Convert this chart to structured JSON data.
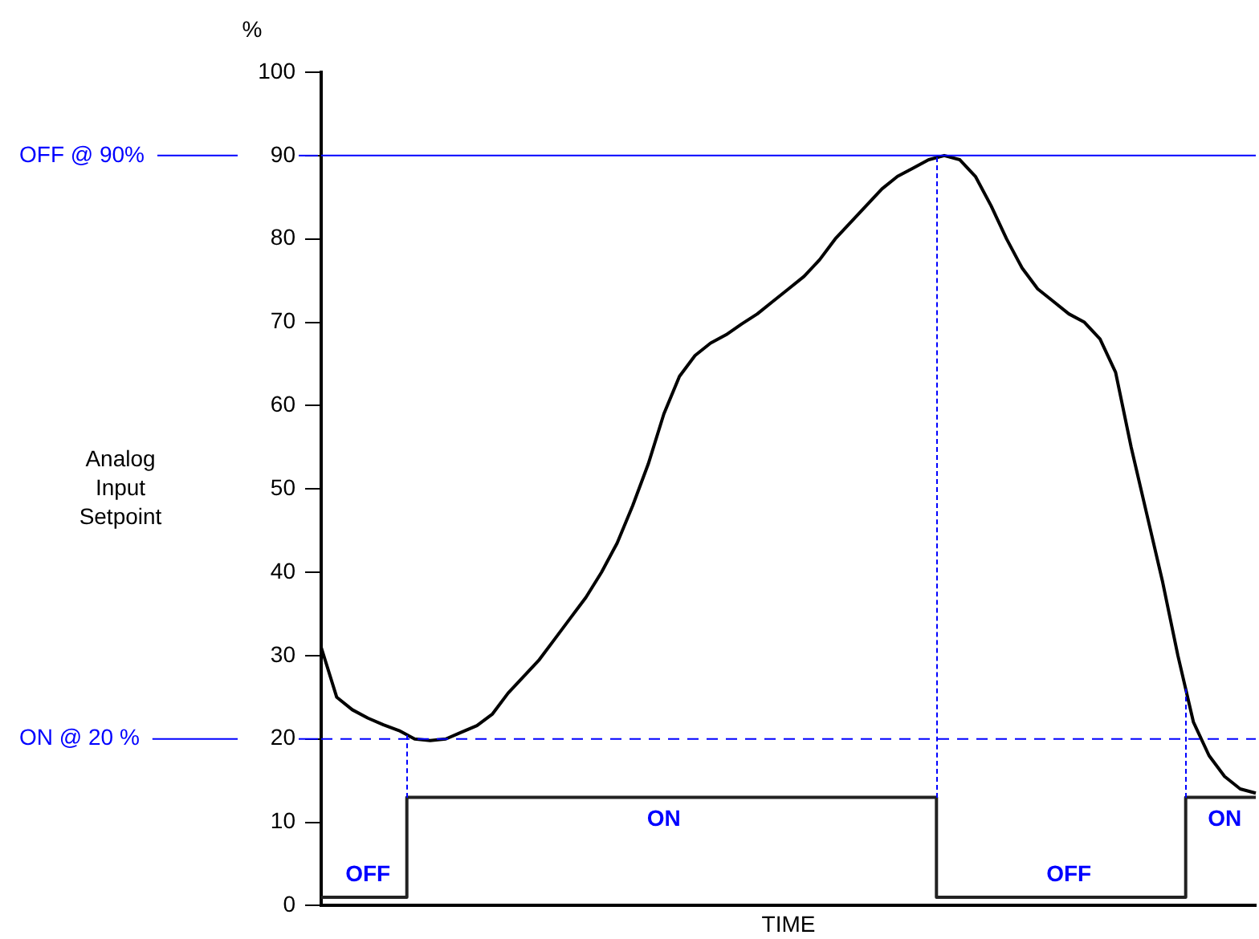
{
  "chart_data": {
    "type": "line",
    "ylabel": "Analog Input Setpoint",
    "xlabel": "TIME",
    "annotations": [
      "%"
    ],
    "categories": [
      null,
      null,
      null,
      null,
      null,
      null,
      null,
      null,
      null,
      null,
      null,
      null,
      null,
      null,
      null,
      null,
      null,
      null,
      null,
      null,
      null,
      null,
      null,
      null,
      null,
      null,
      null,
      null,
      null,
      null,
      null,
      null,
      null,
      null,
      null,
      null,
      null,
      null,
      null,
      null,
      null,
      null,
      null,
      null,
      null,
      null,
      null,
      null,
      null,
      null,
      null,
      null,
      null,
      null,
      null,
      null,
      null,
      null,
      null,
      null,
      null
    ],
    "ylim": [
      0,
      100
    ],
    "yticks": [
      0,
      10,
      20,
      30,
      40,
      50,
      60,
      70,
      80,
      90,
      100
    ],
    "grid": false,
    "legend": false,
    "tick_labels": "y",
    "marker": "none",
    "series": [
      {
        "color": "#000000",
        "values": [
          31,
          25,
          23.5,
          22.5,
          21.7,
          21,
          20,
          19.8,
          20,
          20.8,
          21.6,
          23,
          25.5,
          27.5,
          29.5,
          32,
          34.5,
          37,
          40,
          43.5,
          48,
          53,
          59,
          63.5,
          66,
          67.5,
          68.5,
          69.8,
          71,
          72.5,
          74,
          75.5,
          77.5,
          80,
          82,
          84,
          86,
          87.5,
          88.5,
          89.5,
          90,
          89.5,
          87.5,
          84,
          80,
          76.5,
          74,
          72.5,
          71,
          70,
          68,
          64,
          55,
          47,
          39,
          30,
          22,
          18,
          15.5,
          14,
          13.5
        ]
      },
      {
        "type": "step",
        "color": "#222222",
        "values": [
          1,
          1,
          1,
          1,
          1,
          1,
          13,
          13,
          13,
          13,
          13,
          13,
          13,
          13,
          13,
          13,
          13,
          13,
          13,
          13,
          13,
          13,
          13,
          13,
          13,
          13,
          13,
          13,
          13,
          13,
          13,
          13,
          13,
          13,
          13,
          13,
          13,
          13,
          13,
          13,
          1,
          1,
          1,
          1,
          1,
          1,
          1,
          1,
          1,
          1,
          1,
          1,
          1,
          1,
          1,
          1,
          13,
          13,
          13,
          13,
          13
        ],
        "value_labels": [
          null,
          null,
          null,
          "OFF",
          null,
          null,
          null,
          null,
          null,
          null,
          null,
          null,
          null,
          null,
          null,
          null,
          null,
          null,
          null,
          null,
          null,
          null,
          "ON",
          null,
          null,
          null,
          null,
          null,
          null,
          null,
          null,
          null,
          null,
          null,
          null,
          null,
          null,
          null,
          null,
          null,
          null,
          null,
          null,
          null,
          null,
          null,
          null,
          null,
          "OFF",
          null,
          null,
          null,
          null,
          null,
          null,
          null,
          null,
          null,
          "ON",
          null,
          null
        ]
      }
    ],
    "ref_lines": [
      {
        "axis": "y",
        "value": 90,
        "label": "OFF @ 90%",
        "color": "#0000ff",
        "line_style": "solid"
      },
      {
        "axis": "y",
        "value": 20,
        "label": "ON @ 20 %",
        "color": "#0000ff",
        "line_style": "dashed"
      }
    ]
  }
}
